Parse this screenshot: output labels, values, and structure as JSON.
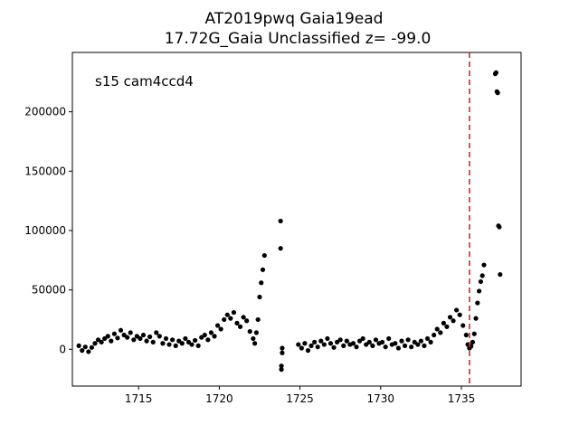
{
  "chart_data": {
    "type": "scatter",
    "title_line1": "AT2019pwq  Gaia19ead",
    "title_line2": "17.72G_Gaia Unclassified z= -99.0",
    "annotation": "s15 cam4ccd4",
    "xlabel": "",
    "ylabel": "",
    "xlim": [
      1710.9,
      1738.7
    ],
    "ylim": [
      -31000,
      250000
    ],
    "xticks": [
      1715,
      1720,
      1725,
      1730,
      1735
    ],
    "yticks": [
      0,
      50000,
      100000,
      150000,
      200000
    ],
    "xtick_labels": [
      "1715",
      "1720",
      "1725",
      "1730",
      "1735"
    ],
    "ytick_labels": [
      "0",
      "50000",
      "100000",
      "150000",
      "200000"
    ],
    "vline": {
      "x": 1735.5,
      "color": "#d62728",
      "style": "dashed"
    },
    "marker_color": "#000000",
    "grid": false,
    "points": [
      [
        1711.3,
        3000
      ],
      [
        1711.5,
        -1000
      ],
      [
        1711.7,
        2000
      ],
      [
        1711.9,
        -2000
      ],
      [
        1712.1,
        1500
      ],
      [
        1712.3,
        5000
      ],
      [
        1712.5,
        8000
      ],
      [
        1712.7,
        6000
      ],
      [
        1712.9,
        9000
      ],
      [
        1713.1,
        11000
      ],
      [
        1713.3,
        7000
      ],
      [
        1713.5,
        13000
      ],
      [
        1713.7,
        9500
      ],
      [
        1713.9,
        16000
      ],
      [
        1714.1,
        12000
      ],
      [
        1714.3,
        10000
      ],
      [
        1714.5,
        14000
      ],
      [
        1714.7,
        8000
      ],
      [
        1714.9,
        11000
      ],
      [
        1715.1,
        9000
      ],
      [
        1715.3,
        12000
      ],
      [
        1715.5,
        7000
      ],
      [
        1715.7,
        10500
      ],
      [
        1715.9,
        6000
      ],
      [
        1716.1,
        14000
      ],
      [
        1716.3,
        11000
      ],
      [
        1716.5,
        5000
      ],
      [
        1716.7,
        9000
      ],
      [
        1716.9,
        4000
      ],
      [
        1717.1,
        8000
      ],
      [
        1717.3,
        3000
      ],
      [
        1717.5,
        7000
      ],
      [
        1717.7,
        5000
      ],
      [
        1717.9,
        9000
      ],
      [
        1718.1,
        6000
      ],
      [
        1718.3,
        4000
      ],
      [
        1718.5,
        7500
      ],
      [
        1718.7,
        3000
      ],
      [
        1718.9,
        10000
      ],
      [
        1719.1,
        12000
      ],
      [
        1719.3,
        8000
      ],
      [
        1719.5,
        14000
      ],
      [
        1719.7,
        11000
      ],
      [
        1719.9,
        20000
      ],
      [
        1720.1,
        17000
      ],
      [
        1720.3,
        25000
      ],
      [
        1720.5,
        29000
      ],
      [
        1720.7,
        26000
      ],
      [
        1720.9,
        31000
      ],
      [
        1721.1,
        22000
      ],
      [
        1721.3,
        19000
      ],
      [
        1721.5,
        27000
      ],
      [
        1721.7,
        24000
      ],
      [
        1721.9,
        15000
      ],
      [
        1722.1,
        9000
      ],
      [
        1722.2,
        5000
      ],
      [
        1722.3,
        14000
      ],
      [
        1722.4,
        25000
      ],
      [
        1722.5,
        44000
      ],
      [
        1722.6,
        56000
      ],
      [
        1722.7,
        67000
      ],
      [
        1722.8,
        79000
      ],
      [
        1723.8,
        108000
      ],
      [
        1723.8,
        85000
      ],
      [
        1723.85,
        -14000
      ],
      [
        1723.85,
        -17000
      ],
      [
        1723.9,
        1000
      ],
      [
        1723.9,
        -3000
      ],
      [
        1724.9,
        4000
      ],
      [
        1725.1,
        1000
      ],
      [
        1725.3,
        5000
      ],
      [
        1725.5,
        -1000
      ],
      [
        1725.7,
        3000
      ],
      [
        1725.9,
        6000
      ],
      [
        1726.1,
        2000
      ],
      [
        1726.3,
        7000
      ],
      [
        1726.5,
        4000
      ],
      [
        1726.7,
        9000
      ],
      [
        1726.9,
        5000
      ],
      [
        1727.1,
        1500
      ],
      [
        1727.3,
        6000
      ],
      [
        1727.5,
        8000
      ],
      [
        1727.7,
        3000
      ],
      [
        1727.9,
        7000
      ],
      [
        1728.1,
        4000
      ],
      [
        1728.3,
        5000
      ],
      [
        1728.5,
        2000
      ],
      [
        1728.7,
        7000
      ],
      [
        1728.9,
        9000
      ],
      [
        1729.1,
        4000
      ],
      [
        1729.3,
        6000
      ],
      [
        1729.5,
        3000
      ],
      [
        1729.7,
        8000
      ],
      [
        1729.9,
        5000
      ],
      [
        1730.1,
        6000
      ],
      [
        1730.3,
        2000
      ],
      [
        1730.5,
        9000
      ],
      [
        1730.7,
        4000
      ],
      [
        1730.9,
        5000
      ],
      [
        1731.1,
        1000
      ],
      [
        1731.3,
        7000
      ],
      [
        1731.5,
        3000
      ],
      [
        1731.7,
        8000
      ],
      [
        1731.9,
        2000
      ],
      [
        1732.1,
        6000
      ],
      [
        1732.3,
        4000
      ],
      [
        1732.5,
        7000
      ],
      [
        1732.7,
        3000
      ],
      [
        1732.9,
        9000
      ],
      [
        1733.1,
        6000
      ],
      [
        1733.3,
        12000
      ],
      [
        1733.5,
        17000
      ],
      [
        1733.7,
        14000
      ],
      [
        1733.9,
        22000
      ],
      [
        1734.1,
        19000
      ],
      [
        1734.3,
        27000
      ],
      [
        1734.5,
        24000
      ],
      [
        1734.7,
        33000
      ],
      [
        1734.9,
        29000
      ],
      [
        1735.1,
        20000
      ],
      [
        1735.3,
        12000
      ],
      [
        1735.4,
        4000
      ],
      [
        1735.5,
        1000
      ],
      [
        1735.6,
        2500
      ],
      [
        1735.7,
        6000
      ],
      [
        1735.8,
        13000
      ],
      [
        1735.9,
        26000
      ],
      [
        1736.0,
        39000
      ],
      [
        1736.1,
        49000
      ],
      [
        1736.2,
        57000
      ],
      [
        1736.3,
        62000
      ],
      [
        1736.4,
        71000
      ],
      [
        1737.1,
        232000
      ],
      [
        1737.15,
        233000
      ],
      [
        1737.2,
        217000
      ],
      [
        1737.25,
        216000
      ],
      [
        1737.3,
        104000
      ],
      [
        1737.35,
        103000
      ],
      [
        1737.4,
        63000
      ]
    ]
  }
}
